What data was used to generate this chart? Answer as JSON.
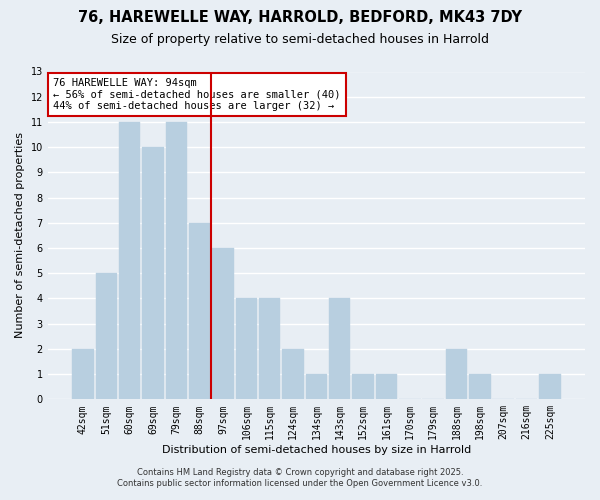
{
  "title1": "76, HAREWELLE WAY, HARROLD, BEDFORD, MK43 7DY",
  "title2": "Size of property relative to semi-detached houses in Harrold",
  "xlabel": "Distribution of semi-detached houses by size in Harrold",
  "ylabel": "Number of semi-detached properties",
  "categories": [
    "42sqm",
    "51sqm",
    "60sqm",
    "69sqm",
    "79sqm",
    "88sqm",
    "97sqm",
    "106sqm",
    "115sqm",
    "124sqm",
    "134sqm",
    "143sqm",
    "152sqm",
    "161sqm",
    "170sqm",
    "179sqm",
    "188sqm",
    "198sqm",
    "207sqm",
    "216sqm",
    "225sqm"
  ],
  "values": [
    2,
    5,
    11,
    10,
    11,
    7,
    6,
    4,
    4,
    2,
    1,
    4,
    1,
    1,
    0,
    0,
    2,
    1,
    0,
    0,
    1
  ],
  "bar_color": "#b8cfe0",
  "bar_edgecolor": "#b8cfe0",
  "vline_x": 6.0,
  "vline_color": "#cc0000",
  "annotation_text": "76 HAREWELLE WAY: 94sqm\n← 56% of semi-detached houses are smaller (40)\n44% of semi-detached houses are larger (32) →",
  "annotation_box_edgecolor": "#cc0000",
  "ylim": [
    0,
    13
  ],
  "yticks": [
    0,
    1,
    2,
    3,
    4,
    5,
    6,
    7,
    8,
    9,
    10,
    11,
    12,
    13
  ],
  "footnote1": "Contains HM Land Registry data © Crown copyright and database right 2025.",
  "footnote2": "Contains public sector information licensed under the Open Government Licence v3.0.",
  "background_color": "#e8eef4",
  "plot_background_color": "#e8eef4",
  "grid_color": "#ffffff",
  "title1_fontsize": 10.5,
  "title2_fontsize": 9,
  "axis_fontsize": 8,
  "ylabel_fontsize": 8,
  "tick_fontsize": 7,
  "annot_fontsize": 7.5,
  "footnote_fontsize": 6
}
